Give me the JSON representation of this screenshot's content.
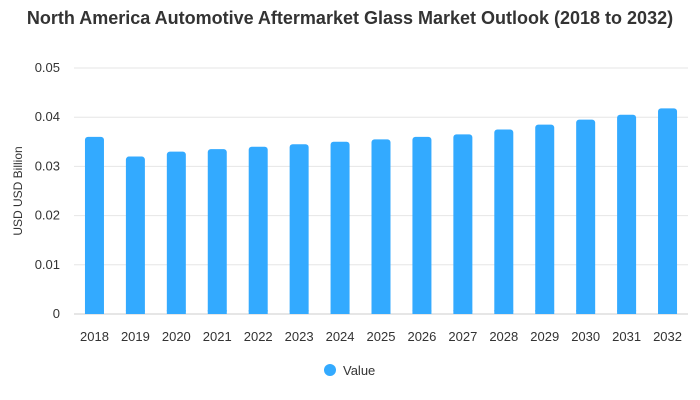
{
  "chart_data": {
    "type": "bar",
    "title": "North America Automotive Aftermarket Glass Market Outlook (2018 to 2032)",
    "ylabel": "USD USD Billion",
    "xlabel": "",
    "categories": [
      "2018",
      "2019",
      "2020",
      "2021",
      "2022",
      "2023",
      "2024",
      "2025",
      "2026",
      "2027",
      "2028",
      "2029",
      "2030",
      "2031",
      "2032"
    ],
    "series": [
      {
        "name": "Value",
        "values": [
          0.036,
          0.032,
          0.033,
          0.0335,
          0.034,
          0.0345,
          0.035,
          0.0355,
          0.036,
          0.0365,
          0.0375,
          0.0385,
          0.0395,
          0.0405,
          0.0418
        ],
        "color": "#33aaff"
      }
    ],
    "ylim": [
      0,
      0.05
    ],
    "yticks": [
      "0",
      "0.01",
      "0.02",
      "0.03",
      "0.04",
      "0.05"
    ],
    "ytick_values": [
      0,
      0.01,
      0.02,
      0.03,
      0.04,
      0.05
    ],
    "grid": true,
    "legend_position": "bottom"
  }
}
